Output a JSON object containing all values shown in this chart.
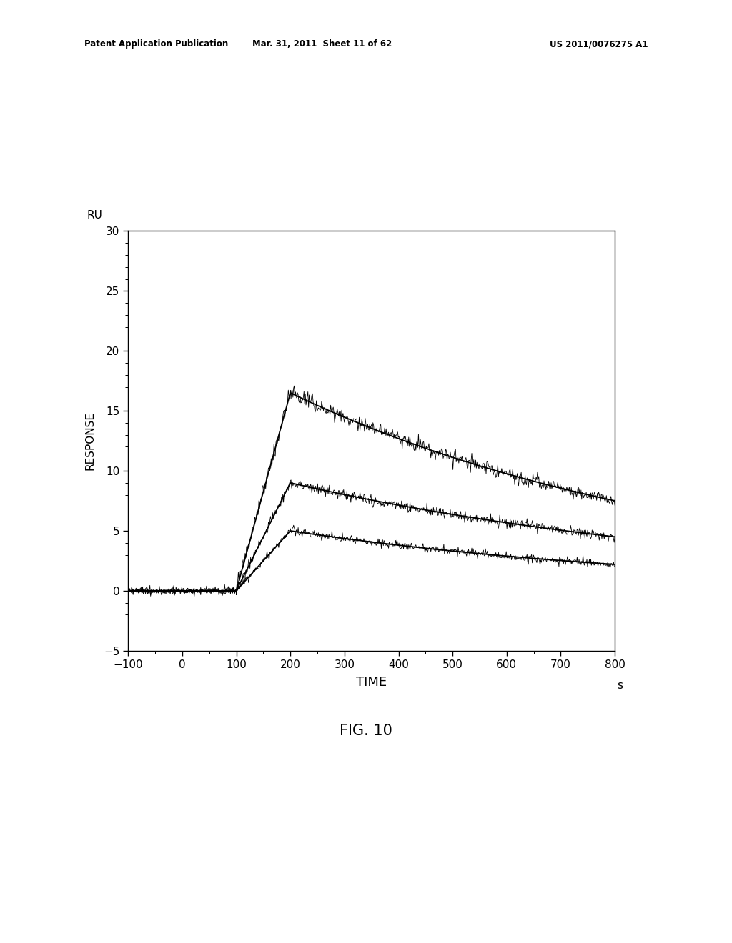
{
  "title": "FIG. 10",
  "patent_header_left": "Patent Application Publication",
  "patent_header_mid": "Mar. 31, 2011  Sheet 11 of 62",
  "patent_header_right": "US 2011/0076275 A1",
  "ylabel": "RESPONSE",
  "xlabel": "TIME",
  "xlabel_unit": "s",
  "ylabel_unit": "RU",
  "xlim": [
    -100,
    800
  ],
  "ylim": [
    -5,
    30
  ],
  "xticks": [
    -100,
    0,
    100,
    200,
    300,
    400,
    500,
    600,
    700,
    800
  ],
  "yticks": [
    -5,
    0,
    5,
    10,
    15,
    20,
    25,
    30
  ],
  "background_color": "#ffffff",
  "line_color": "#000000",
  "association_start": 100,
  "association_end": 200,
  "dissociation_end": 800,
  "pre_baseline_start": -100,
  "curves": [
    {
      "peak": 16.5,
      "decay_end": 7.5,
      "noise": 0.3,
      "seed": 1
    },
    {
      "peak": 9.0,
      "decay_end": 4.5,
      "noise": 0.22,
      "seed": 2
    },
    {
      "peak": 5.0,
      "decay_end": 2.2,
      "noise": 0.18,
      "seed": 3
    }
  ]
}
